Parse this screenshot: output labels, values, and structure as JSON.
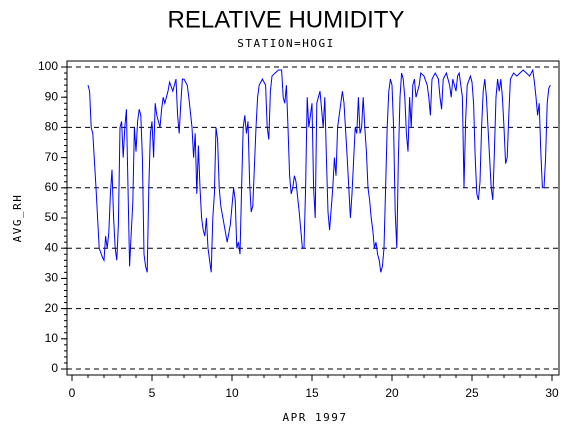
{
  "chart_data": {
    "type": "line",
    "title": "RELATIVE HUMIDITY",
    "subtitle": "STATION=HOGI",
    "x_label": "APR 1997",
    "y_label": "AVG_RH",
    "xlim": [
      0,
      30
    ],
    "xticks": [
      0,
      5,
      10,
      15,
      20,
      25,
      30
    ],
    "ylim": [
      0,
      100
    ],
    "yticks": [
      0,
      10,
      20,
      30,
      40,
      50,
      60,
      70,
      80,
      90,
      100
    ],
    "grid_ticks": [
      0,
      20,
      40,
      60,
      80,
      100
    ],
    "grid": "dashed",
    "x": [
      1.0,
      1.1,
      1.2,
      1.3,
      1.5,
      1.6,
      1.7,
      1.9,
      2.0,
      2.1,
      2.2,
      2.3,
      2.4,
      2.5,
      2.6,
      2.7,
      2.8,
      2.9,
      3.0,
      3.1,
      3.2,
      3.3,
      3.4,
      3.5,
      3.6,
      3.7,
      3.8,
      3.9,
      4.0,
      4.1,
      4.2,
      4.3,
      4.4,
      4.5,
      4.6,
      4.7,
      4.8,
      4.9,
      5.0,
      5.1,
      5.2,
      5.3,
      5.5,
      5.6,
      5.7,
      5.8,
      6.0,
      6.1,
      6.3,
      6.5,
      6.6,
      6.7,
      6.8,
      6.9,
      7.0,
      7.2,
      7.3,
      7.5,
      7.6,
      7.7,
      7.8,
      7.9,
      8.0,
      8.1,
      8.2,
      8.3,
      8.4,
      8.5,
      8.6,
      8.7,
      8.8,
      8.9,
      9.0,
      9.1,
      9.2,
      9.3,
      9.5,
      9.7,
      9.9,
      10.0,
      10.1,
      10.2,
      10.3,
      10.4,
      10.5,
      10.6,
      10.7,
      10.8,
      10.9,
      11.0,
      11.1,
      11.2,
      11.3,
      11.5,
      11.6,
      11.7,
      11.9,
      12.1,
      12.2,
      12.3,
      12.4,
      12.5,
      12.7,
      12.9,
      13.1,
      13.2,
      13.3,
      13.4,
      13.5,
      13.6,
      13.7,
      13.8,
      13.9,
      14.0,
      14.2,
      14.4,
      14.5,
      14.6,
      14.7,
      14.8,
      15.0,
      15.1,
      15.2,
      15.3,
      15.5,
      15.7,
      15.8,
      15.9,
      16.0,
      16.1,
      16.3,
      16.4,
      16.5,
      16.6,
      16.8,
      16.9,
      17.0,
      17.2,
      17.3,
      17.4,
      17.5,
      17.7,
      17.8,
      17.9,
      18.0,
      18.1,
      18.2,
      18.3,
      18.4,
      18.5,
      18.6,
      18.7,
      18.8,
      18.9,
      19.0,
      19.1,
      19.2,
      19.3,
      19.4,
      19.5,
      19.6,
      19.7,
      19.8,
      19.9,
      20.0,
      20.1,
      20.2,
      20.3,
      20.4,
      20.5,
      20.6,
      20.7,
      20.8,
      20.9,
      21.0,
      21.1,
      21.2,
      21.3,
      21.4,
      21.5,
      21.7,
      21.8,
      22.0,
      22.2,
      22.3,
      22.4,
      22.5,
      22.7,
      22.9,
      23.0,
      23.1,
      23.2,
      23.4,
      23.6,
      23.7,
      23.8,
      24.0,
      24.1,
      24.2,
      24.4,
      24.5,
      24.6,
      24.7,
      24.9,
      25.0,
      25.1,
      25.2,
      25.3,
      25.4,
      25.5,
      25.6,
      25.7,
      25.8,
      25.9,
      26.0,
      26.1,
      26.2,
      26.3,
      26.4,
      26.5,
      26.6,
      26.7,
      26.8,
      26.9,
      27.0,
      27.1,
      27.2,
      27.3,
      27.4,
      27.6,
      27.8,
      28.0,
      28.2,
      28.4,
      28.6,
      28.8,
      28.9,
      29.0,
      29.1,
      29.2,
      29.3,
      29.4,
      29.5,
      29.6,
      29.7,
      29.8,
      29.9
    ],
    "series": [
      {
        "name": "AVG_RH",
        "color": "#0000ff",
        "values": [
          94,
          92,
          80,
          78,
          60,
          50,
          40,
          37,
          36,
          44,
          40,
          45,
          58,
          66,
          50,
          40,
          36,
          48,
          80,
          82,
          70,
          80,
          86,
          60,
          34,
          45,
          55,
          80,
          72,
          82,
          86,
          84,
          70,
          38,
          34,
          32,
          60,
          78,
          82,
          70,
          88,
          84,
          80,
          86,
          90,
          88,
          92,
          95,
          92,
          96,
          84,
          78,
          88,
          96,
          96,
          94,
          90,
          80,
          70,
          78,
          58,
          74,
          60,
          50,
          46,
          44,
          50,
          40,
          36,
          32,
          50,
          58,
          80,
          76,
          60,
          54,
          48,
          42,
          48,
          54,
          60,
          56,
          40,
          42,
          38,
          60,
          80,
          84,
          78,
          82,
          62,
          52,
          54,
          80,
          90,
          94,
          96,
          94,
          80,
          76,
          92,
          97,
          98,
          99,
          99,
          90,
          88,
          94,
          80,
          64,
          58,
          60,
          64,
          62,
          52,
          40,
          40,
          60,
          90,
          80,
          88,
          60,
          50,
          88,
          92,
          80,
          90,
          70,
          52,
          46,
          60,
          70,
          64,
          80,
          88,
          92,
          88,
          70,
          60,
          50,
          58,
          80,
          78,
          90,
          78,
          80,
          90,
          80,
          72,
          60,
          56,
          50,
          46,
          40,
          42,
          38,
          36,
          32,
          34,
          40,
          60,
          80,
          92,
          96,
          94,
          80,
          52,
          40,
          70,
          90,
          98,
          96,
          90,
          78,
          72,
          90,
          80,
          94,
          96,
          90,
          94,
          98,
          97,
          94,
          90,
          84,
          96,
          98,
          96,
          90,
          86,
          96,
          98,
          94,
          90,
          96,
          92,
          97,
          98,
          90,
          60,
          82,
          94,
          97,
          95,
          88,
          70,
          58,
          56,
          62,
          80,
          92,
          96,
          90,
          80,
          70,
          60,
          56,
          72,
          90,
          96,
          92,
          96,
          90,
          80,
          68,
          70,
          84,
          96,
          98,
          97,
          98,
          99,
          98,
          97,
          99,
          95,
          90,
          84,
          88,
          72,
          60,
          60,
          70,
          88,
          93,
          94
        ]
      }
    ]
  }
}
